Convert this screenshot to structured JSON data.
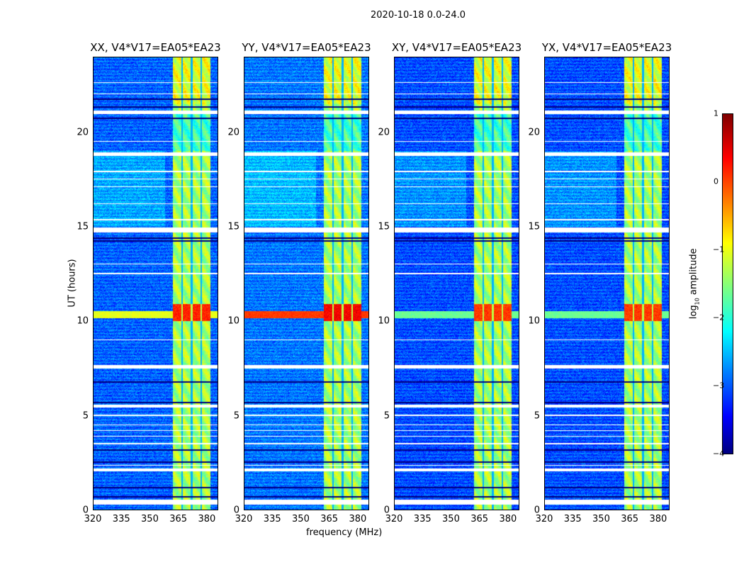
{
  "suptitle": "2020-10-18 0.0-24.0",
  "chart_data": {
    "type": "heatmap",
    "title": "2020-10-18 0.0-24.0",
    "xlabel": "frequency (MHz)",
    "ylabel": "UT (hours)",
    "xlim": [
      320,
      386
    ],
    "ylim": [
      0,
      24
    ],
    "xticks": [
      "320",
      "335",
      "350",
      "365",
      "380"
    ],
    "xtick_values": [
      320,
      335,
      350,
      365,
      380
    ],
    "yticks": [
      "0",
      "5",
      "10",
      "15",
      "20"
    ],
    "ytick_values": [
      0,
      5,
      10,
      15,
      20
    ],
    "panels": [
      {
        "title": "XX, V4*V17=EA05*EA23",
        "background_log_amp": -2.9,
        "rfi_10h_log_amp": -1.0,
        "band_peak_log_amp": 0.2
      },
      {
        "title": "YY, V4*V17=EA05*EA23",
        "background_log_amp": -2.8,
        "rfi_10h_log_amp": 0.1,
        "band_peak_log_amp": 0.4
      },
      {
        "title": "XY, V4*V17=EA05*EA23",
        "background_log_amp": -3.0,
        "rfi_10h_log_amp": -1.6,
        "band_peak_log_amp": 0.1
      },
      {
        "title": "YX, V4*V17=EA05*EA23",
        "background_log_amp": -3.0,
        "rfi_10h_log_amp": -1.6,
        "band_peak_log_amp": 0.1
      }
    ],
    "rfi_band_mhz": [
      362,
      382
    ],
    "band_gaps_mhz": [
      367,
      372,
      377
    ],
    "rfi_hours": [
      10.0,
      10.9
    ],
    "flagged_hours": [
      [
        0.3,
        0.55
      ],
      [
        2.05,
        2.2
      ],
      [
        2.35,
        2.4
      ],
      [
        3.5,
        3.55
      ],
      [
        3.9,
        3.95
      ],
      [
        4.2,
        4.25
      ],
      [
        4.5,
        4.55
      ],
      [
        5.0,
        5.05
      ],
      [
        5.45,
        5.6
      ],
      [
        7.5,
        7.7
      ],
      [
        9.0,
        9.05
      ],
      [
        12.5,
        12.55
      ],
      [
        13.0,
        13.05
      ],
      [
        14.7,
        14.95
      ],
      [
        15.35,
        15.4
      ],
      [
        16.2,
        16.25
      ],
      [
        17.1,
        17.15
      ],
      [
        17.5,
        17.55
      ],
      [
        17.9,
        17.95
      ],
      [
        18.75,
        18.95
      ],
      [
        19.5,
        19.55
      ],
      [
        20.95,
        21.15
      ],
      [
        22.0,
        22.05
      ],
      [
        22.6,
        22.65
      ]
    ],
    "dropout_hours": [
      0.7,
      1.2,
      2.55,
      3.2,
      5.7,
      6.8,
      14.25,
      14.4,
      20.75,
      21.35,
      21.75
    ],
    "colorbar": {
      "label": "log10 amplitude",
      "label_main": "log",
      "label_sub": "10",
      "label_tail": " amplitude",
      "range": [
        -4,
        1
      ],
      "ticks": [
        "1",
        "0",
        "−1",
        "−2",
        "−3",
        "−4"
      ],
      "tick_values": [
        1,
        0,
        -1,
        -2,
        -3,
        -4
      ],
      "colormap": "jet"
    }
  }
}
